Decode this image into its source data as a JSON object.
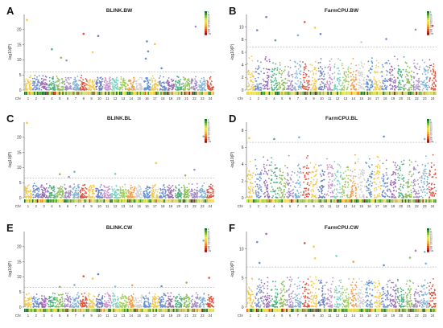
{
  "chromosome_colors": [
    "#f2c94c",
    "#6f8fd0",
    "#9b6bb5",
    "#4caf7d",
    "#8dbf5a",
    "#a58cc9",
    "#7fb3d5",
    "#e0533f",
    "#f7c948",
    "#6c7fbf",
    "#c98fcf",
    "#7ad3c0",
    "#9ecf5a",
    "#f29f4b",
    "#d1d1d1",
    "#5f91d6"
  ],
  "density_colors": [
    "#1a6f2e",
    "#4a9a2f",
    "#8fbf3a",
    "#c8d94a",
    "#e8e35a",
    "#f2d24a",
    "#f0b23c",
    "#e98c2f",
    "#d85a26",
    "#b8301f",
    "#8b1a14"
  ],
  "chart_data": [
    {
      "panel_letter": "A",
      "type": "scatter",
      "subtype": "manhattan",
      "title": "BLINK.BW",
      "ylabel": "-log10(P)",
      "xlabel_prefix": "Chr",
      "chromosomes": [
        "1",
        "2",
        "3",
        "4",
        "5",
        "6",
        "7",
        "8",
        "9",
        "10",
        "11",
        "12",
        "13",
        "14",
        "15",
        "16",
        "17",
        "18",
        "19",
        "20",
        "21",
        "22",
        "23",
        "24"
      ],
      "ylim": [
        0,
        25
      ],
      "yticks": [
        0,
        5,
        10,
        15,
        20
      ],
      "threshold": 6,
      "baseline_max": 5,
      "density_legend": [
        "0",
        "11",
        "22",
        "33",
        "44",
        "55",
        "66",
        "77",
        "88",
        "99",
        ">99"
      ],
      "significant_points": [
        {
          "chr": 1,
          "y": 23.2
        },
        {
          "chr": 4,
          "y": 13.5
        },
        {
          "chr": 5,
          "y": 10.7
        },
        {
          "chr": 6,
          "y": 9.8
        },
        {
          "chr": 8,
          "y": 18.6
        },
        {
          "chr": 9,
          "y": 12.5
        },
        {
          "chr": 10,
          "y": 17.9
        },
        {
          "chr": 16,
          "y": 16.1
        },
        {
          "chr": 16,
          "y": 12.8
        },
        {
          "chr": 16,
          "y": 10.4
        },
        {
          "chr": 17,
          "y": 15.2
        },
        {
          "chr": 22,
          "y": 21.0
        },
        {
          "chr": 18,
          "y": 7.2
        }
      ]
    },
    {
      "panel_letter": "B",
      "type": "scatter",
      "subtype": "manhattan",
      "title": "FarmCPU.BW",
      "ylabel": "-log10(P)",
      "xlabel_prefix": "Chr",
      "chromosomes": [
        "1",
        "2",
        "3",
        "4",
        "5",
        "6",
        "7",
        "8",
        "9",
        "10",
        "11",
        "12",
        "13",
        "14",
        "15",
        "16",
        "17",
        "18",
        "19",
        "20",
        "21",
        "22",
        "23",
        "24"
      ],
      "ylim": [
        0,
        12
      ],
      "yticks": [
        0,
        2,
        4,
        6,
        8,
        10
      ],
      "threshold": 6.8,
      "baseline_max": 5.6,
      "density_legend": [
        "0",
        "11",
        "22",
        "33",
        "44",
        "55",
        "66",
        "77",
        "88",
        "99",
        ">99"
      ],
      "significant_points": [
        {
          "chr": 2,
          "y": 9.5
        },
        {
          "chr": 3,
          "y": 11.6
        },
        {
          "chr": 4,
          "y": 7.9
        },
        {
          "chr": 8,
          "y": 10.8
        },
        {
          "chr": 7,
          "y": 8.7
        },
        {
          "chr": 9,
          "y": 9.9
        },
        {
          "chr": 10,
          "y": 8.9
        },
        {
          "chr": 15,
          "y": 7.6
        },
        {
          "chr": 18,
          "y": 8.1
        },
        {
          "chr": 22,
          "y": 9.6
        },
        {
          "chr": 24,
          "y": 10.2
        }
      ]
    },
    {
      "panel_letter": "C",
      "type": "scatter",
      "subtype": "manhattan",
      "title": "BLINK.BL",
      "ylabel": "-log10(P)",
      "xlabel_prefix": "Chr",
      "chromosomes": [
        "1",
        "2",
        "3",
        "4",
        "5",
        "6",
        "7",
        "8",
        "9",
        "10",
        "11",
        "12",
        "13",
        "14",
        "15",
        "16",
        "17",
        "18",
        "19",
        "20",
        "21",
        "22",
        "23",
        "24"
      ],
      "ylim": [
        0,
        25
      ],
      "yticks": [
        0,
        5,
        10,
        15,
        20
      ],
      "threshold": 6.5,
      "baseline_max": 5,
      "density_legend": [
        "0",
        "11",
        "22",
        "33",
        "44",
        "55",
        "66",
        "77",
        "88",
        "99",
        ">99"
      ],
      "significant_points": [
        {
          "chr": 1,
          "y": 24.8
        },
        {
          "chr": 5,
          "y": 7.8
        },
        {
          "chr": 6,
          "y": 6.9
        },
        {
          "chr": 7,
          "y": 8.6
        },
        {
          "chr": 12,
          "y": 7.9
        },
        {
          "chr": 17,
          "y": 11.5
        },
        {
          "chr": 21,
          "y": 7.4
        },
        {
          "chr": 22,
          "y": 9.3
        },
        {
          "chr": 23,
          "y": 20.3
        }
      ]
    },
    {
      "panel_letter": "D",
      "type": "scatter",
      "subtype": "manhattan",
      "title": "FarmCPU.BL",
      "ylabel": "-log10(P)",
      "xlabel_prefix": "Chr",
      "chromosomes": [
        "1",
        "2",
        "3",
        "4",
        "5",
        "6",
        "7",
        "8",
        "9",
        "10",
        "11",
        "12",
        "13",
        "14",
        "15",
        "16",
        "17",
        "18",
        "19",
        "20",
        "21",
        "22",
        "23",
        "24"
      ],
      "ylim": [
        0,
        9
      ],
      "yticks": [
        0,
        2,
        4,
        6,
        8
      ],
      "threshold": 6.6,
      "baseline_max": 5.2,
      "density_legend": [
        "0",
        "11",
        "22",
        "33",
        "44",
        "55",
        "66",
        "77",
        "88",
        "99",
        ">99"
      ],
      "significant_points": [
        {
          "chr": 1,
          "y": 7.1
        },
        {
          "chr": 4,
          "y": 7.0
        },
        {
          "chr": 7,
          "y": 7.2
        },
        {
          "chr": 18,
          "y": 7.3
        },
        {
          "chr": 23,
          "y": 7.0
        }
      ]
    },
    {
      "panel_letter": "E",
      "type": "scatter",
      "subtype": "manhattan",
      "title": "BLINK.CW",
      "ylabel": "-log10(P)",
      "xlabel_prefix": "Chr",
      "chromosomes": [
        "1",
        "2",
        "3",
        "4",
        "5",
        "6",
        "7",
        "8",
        "9",
        "10",
        "11",
        "12",
        "13",
        "14",
        "15",
        "16",
        "17",
        "18",
        "19",
        "20",
        "21",
        "22",
        "23",
        "24"
      ],
      "ylim": [
        0,
        25
      ],
      "yticks": [
        0,
        5,
        10,
        15,
        20
      ],
      "threshold": 6.5,
      "baseline_max": 5,
      "density_legend": [
        "0",
        "11",
        "22",
        "33",
        "44",
        "55",
        "66",
        "77",
        "88",
        "99",
        ">99"
      ],
      "significant_points": [
        {
          "chr": 7,
          "y": 7.3
        },
        {
          "chr": 8,
          "y": 10.2
        },
        {
          "chr": 9,
          "y": 9.4
        },
        {
          "chr": 10,
          "y": 10.9
        },
        {
          "chr": 12,
          "y": 6.8
        },
        {
          "chr": 14,
          "y": 7.2
        },
        {
          "chr": 18,
          "y": 6.9
        },
        {
          "chr": 21,
          "y": 8.1
        },
        {
          "chr": 23,
          "y": 22.0
        },
        {
          "chr": 24,
          "y": 9.7
        },
        {
          "chr": 5,
          "y": 6.7
        }
      ]
    },
    {
      "panel_letter": "F",
      "type": "scatter",
      "subtype": "manhattan",
      "title": "FarmCPU.CW",
      "ylabel": "-log10(P)",
      "xlabel_prefix": "Chr",
      "chromosomes": [
        "1",
        "2",
        "3",
        "4",
        "5",
        "6",
        "7",
        "8",
        "9",
        "10",
        "11",
        "12",
        "13",
        "14",
        "15",
        "16",
        "17",
        "18",
        "19",
        "20",
        "21",
        "22",
        "23",
        "24"
      ],
      "ylim": [
        0,
        13
      ],
      "yticks": [
        0,
        5,
        10
      ],
      "threshold": 6.9,
      "baseline_max": 5.5,
      "density_legend": [
        "0",
        "11",
        "22",
        "33",
        "44",
        "55",
        "66",
        "77",
        "88",
        "99",
        ">99"
      ],
      "significant_points": [
        {
          "chr": 2,
          "y": 11.2
        },
        {
          "chr": 3,
          "y": 12.6
        },
        {
          "chr": 2,
          "y": 7.6
        },
        {
          "chr": 8,
          "y": 11.0
        },
        {
          "chr": 9,
          "y": 10.4
        },
        {
          "chr": 9,
          "y": 8.4
        },
        {
          "chr": 12,
          "y": 8.8
        },
        {
          "chr": 14,
          "y": 7.8
        },
        {
          "chr": 21,
          "y": 8.5
        },
        {
          "chr": 22,
          "y": 9.7
        },
        {
          "chr": 23,
          "y": 9.5
        },
        {
          "chr": 23,
          "y": 7.5
        },
        {
          "chr": 18,
          "y": 7.2
        }
      ]
    }
  ]
}
